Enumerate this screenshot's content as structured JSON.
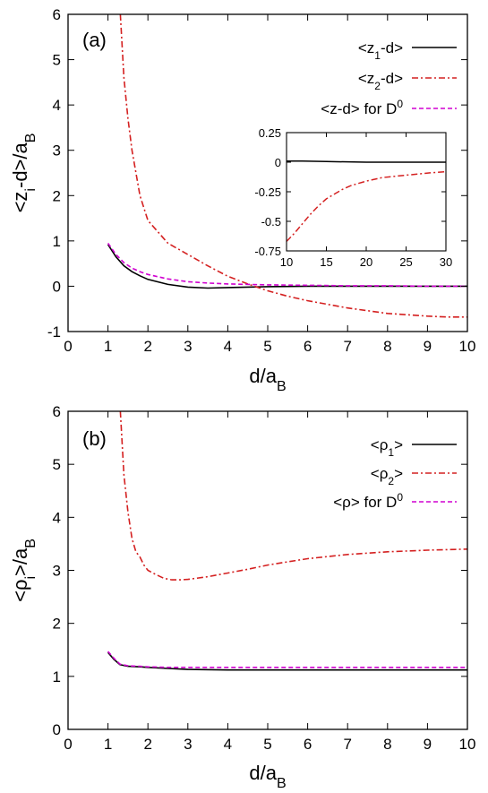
{
  "chart_data": [
    {
      "type": "line",
      "panel_label": "(a)",
      "xlabel": {
        "main": "d/a",
        "sub": "B"
      },
      "ylabel": {
        "parts": [
          {
            "t": "<z"
          },
          {
            "t": "i",
            "sub": true
          },
          {
            "t": "-d>/a"
          },
          {
            "t": "B",
            "sub": true
          }
        ]
      },
      "xlim": [
        0,
        10
      ],
      "ylim": [
        -1,
        6
      ],
      "xticks": [
        0,
        1,
        2,
        3,
        4,
        5,
        6,
        7,
        8,
        9,
        10
      ],
      "yticks": [
        -1,
        0,
        1,
        2,
        3,
        4,
        5,
        6
      ],
      "legend_position": "top-right",
      "series": [
        {
          "legend": [
            {
              "t": "<z"
            },
            {
              "t": "1",
              "sub": true
            },
            {
              "t": "-d>"
            }
          ],
          "color": "#000000",
          "dash": "solid",
          "x": [
            1.0,
            1.2,
            1.4,
            1.6,
            1.8,
            2.0,
            2.5,
            3.0,
            3.5,
            4.0,
            4.5,
            5.0,
            6.0,
            7.0,
            8.0,
            9.0,
            10.0
          ],
          "y": [
            0.92,
            0.65,
            0.45,
            0.32,
            0.23,
            0.15,
            0.04,
            -0.02,
            -0.04,
            -0.03,
            -0.02,
            -0.01,
            0.0,
            0.0,
            0.0,
            0.0,
            0.0
          ]
        },
        {
          "legend": [
            {
              "t": "<z"
            },
            {
              "t": "2",
              "sub": true
            },
            {
              "t": "-d>"
            }
          ],
          "color": "#d42020",
          "dash": "dashdot",
          "x": [
            1.31,
            1.4,
            1.5,
            1.6,
            1.8,
            2.0,
            2.2,
            2.5,
            3.0,
            3.5,
            4.0,
            4.5,
            5.0,
            5.5,
            6.0,
            7.0,
            8.0,
            9.0,
            9.5,
            10.0
          ],
          "y": [
            6.0,
            4.6,
            3.7,
            3.0,
            2.0,
            1.45,
            1.25,
            0.95,
            0.7,
            0.45,
            0.22,
            0.05,
            -0.1,
            -0.22,
            -0.32,
            -0.48,
            -0.6,
            -0.66,
            -0.68,
            -0.68
          ]
        },
        {
          "legend": [
            {
              "t": "<z-d> for D"
            },
            {
              "t": "0",
              "sup": true
            }
          ],
          "color": "#d000d0",
          "dash": "dashed",
          "x": [
            1.0,
            1.2,
            1.4,
            1.6,
            1.8,
            2.0,
            2.5,
            3.0,
            3.5,
            4.0,
            5.0,
            6.0,
            7.0,
            8.0,
            9.0,
            10.0
          ],
          "y": [
            0.95,
            0.7,
            0.52,
            0.4,
            0.32,
            0.26,
            0.16,
            0.1,
            0.07,
            0.05,
            0.03,
            0.02,
            0.01,
            0.01,
            0.0,
            0.0
          ]
        }
      ],
      "inset": {
        "xlim": [
          10,
          30
        ],
        "ylim": [
          -0.75,
          0.25
        ],
        "xticks": [
          10,
          15,
          20,
          25,
          30
        ],
        "yticks": [
          0.25,
          0,
          -0.25,
          -0.5,
          -0.75
        ],
        "ytick_labels": [
          "0.25",
          "0",
          "-0.25",
          "-0.5",
          "-0.75"
        ],
        "series": [
          {
            "color": "#000000",
            "dash": "solid",
            "x": [
              10,
              12,
              15,
              20,
              25,
              30
            ],
            "y": [
              0.01,
              0.01,
              0.005,
              0.0,
              0.0,
              0.0
            ]
          },
          {
            "color": "#d42020",
            "dash": "dashdot",
            "x": [
              10,
              11,
              12,
              13,
              14,
              15,
              16,
              17,
              18,
              20,
              22,
              25,
              28,
              30
            ],
            "y": [
              -0.67,
              -0.6,
              -0.52,
              -0.44,
              -0.37,
              -0.31,
              -0.27,
              -0.23,
              -0.2,
              -0.16,
              -0.13,
              -0.11,
              -0.09,
              -0.08
            ]
          }
        ]
      }
    },
    {
      "type": "line",
      "panel_label": "(b)",
      "xlabel": {
        "main": "d/a",
        "sub": "B"
      },
      "ylabel": {
        "parts": [
          {
            "t": "<ρ"
          },
          {
            "t": "i",
            "sub": true
          },
          {
            "t": ">/a"
          },
          {
            "t": "B",
            "sub": true
          }
        ]
      },
      "xlim": [
        0,
        10
      ],
      "ylim": [
        0,
        6
      ],
      "xticks": [
        0,
        1,
        2,
        3,
        4,
        5,
        6,
        7,
        8,
        9,
        10
      ],
      "yticks": [
        0,
        1,
        2,
        3,
        4,
        5,
        6
      ],
      "legend_position": "top-right",
      "series": [
        {
          "legend": [
            {
              "t": "<ρ"
            },
            {
              "t": "1",
              "sub": true
            },
            {
              "t": ">"
            }
          ],
          "color": "#000000",
          "dash": "solid",
          "x": [
            1.0,
            1.15,
            1.3,
            1.5,
            1.8,
            2.0,
            2.5,
            3.0,
            4.0,
            5.0,
            6.0,
            7.0,
            8.0,
            9.0,
            10.0
          ],
          "y": [
            1.45,
            1.32,
            1.22,
            1.19,
            1.18,
            1.17,
            1.15,
            1.13,
            1.12,
            1.12,
            1.12,
            1.12,
            1.12,
            1.12,
            1.12
          ]
        },
        {
          "legend": [
            {
              "t": "<ρ"
            },
            {
              "t": "2",
              "sub": true
            },
            {
              "t": ">"
            }
          ],
          "color": "#d42020",
          "dash": "dashdot",
          "x": [
            1.31,
            1.4,
            1.5,
            1.6,
            1.7,
            1.8,
            1.9,
            2.0,
            2.2,
            2.4,
            2.6,
            2.8,
            3.0,
            3.5,
            4.0,
            4.5,
            5.0,
            5.5,
            6.0,
            7.0,
            8.0,
            9.0,
            10.0
          ],
          "y": [
            6.0,
            4.8,
            4.1,
            3.6,
            3.35,
            3.25,
            3.1,
            3.0,
            2.92,
            2.85,
            2.82,
            2.82,
            2.83,
            2.88,
            2.95,
            3.02,
            3.1,
            3.16,
            3.22,
            3.3,
            3.35,
            3.38,
            3.4
          ]
        },
        {
          "legend": [
            {
              "t": "<ρ> for D"
            },
            {
              "t": "0",
              "sup": true
            }
          ],
          "color": "#d000d0",
          "dash": "dashed",
          "x": [
            1.0,
            1.15,
            1.3,
            1.5,
            1.8,
            2.0,
            2.5,
            3.0,
            4.0,
            5.0,
            6.0,
            7.0,
            8.0,
            9.0,
            10.0
          ],
          "y": [
            1.47,
            1.34,
            1.23,
            1.2,
            1.19,
            1.18,
            1.17,
            1.17,
            1.17,
            1.17,
            1.17,
            1.17,
            1.17,
            1.17,
            1.17
          ]
        }
      ]
    }
  ]
}
